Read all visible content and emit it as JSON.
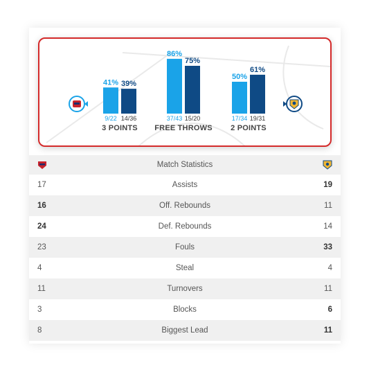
{
  "chart_data": {
    "type": "bar",
    "categories": [
      "3 POINTS",
      "FREE THROWS",
      "2 POINTS"
    ],
    "series": [
      {
        "values": [
          41,
          86,
          50
        ],
        "top_labels": [
          "41%",
          "86%",
          "50%"
        ],
        "bottom_labels": [
          "9/22",
          "37/43",
          "17/34"
        ]
      },
      {
        "values": [
          39,
          75,
          61
        ],
        "top_labels": [
          "39%",
          "75%",
          "61%"
        ],
        "bottom_labels": [
          "14/36",
          "15/20",
          "19/31"
        ]
      }
    ],
    "ylim": [
      0,
      100
    ],
    "colors": {
      "home": "#1aa3e8",
      "away": "#0f4a85"
    }
  },
  "table": {
    "header": "Match Statistics",
    "rows": [
      {
        "home": "17",
        "label": "Assists",
        "away": "19",
        "bold": "away"
      },
      {
        "home": "16",
        "label": "Off. Rebounds",
        "away": "11",
        "bold": "home"
      },
      {
        "home": "24",
        "label": "Def. Rebounds",
        "away": "14",
        "bold": "home"
      },
      {
        "home": "23",
        "label": "Fouls",
        "away": "33",
        "bold": "away"
      },
      {
        "home": "4",
        "label": "Steal",
        "away": "4",
        "bold": "none"
      },
      {
        "home": "11",
        "label": "Turnovers",
        "away": "11",
        "bold": "none"
      },
      {
        "home": "3",
        "label": "Blocks",
        "away": "6",
        "bold": "away"
      },
      {
        "home": "8",
        "label": "Biggest Lead",
        "away": "11",
        "bold": "away"
      }
    ]
  },
  "logos": {
    "home": "cska-logo-icon",
    "away": "khimki-logo-icon"
  },
  "colors": {
    "accent_border": "#d42a2a",
    "home_bar": "#1aa3e8",
    "away_bar": "#0f4a85",
    "row_alt": "#f0f0f0"
  }
}
